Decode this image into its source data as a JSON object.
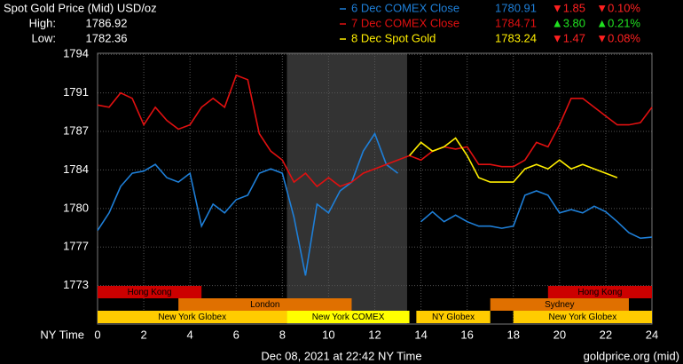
{
  "chart_data": {
    "type": "line",
    "title": "Spot Gold Price (Mid) USD/oz",
    "high_label": "High:",
    "high": 1786.92,
    "low_label": "Low:",
    "low": 1782.36,
    "x_label": "NY Time",
    "footer_left": "Dec 08, 2021 at 22:42 NY Time",
    "footer_right": "goldprice.org (mid)",
    "xlim": [
      0,
      24
    ],
    "xticks": [
      0,
      2,
      4,
      6,
      8,
      10,
      12,
      14,
      16,
      18,
      20,
      22,
      24
    ],
    "ylim": [
      1769.9,
      1794.5
    ],
    "yticks": [
      {
        "value": 1773.4,
        "label": "1773"
      },
      {
        "value": 1776.9,
        "label": "1777"
      },
      {
        "value": 1780.4,
        "label": "1780"
      },
      {
        "value": 1783.9,
        "label": "1784"
      },
      {
        "value": 1787.4,
        "label": "1787"
      },
      {
        "value": 1790.9,
        "label": "1791"
      },
      {
        "value": 1794.4,
        "label": "1794"
      }
    ],
    "grid": true,
    "highlight": [
      8.2,
      13.4
    ],
    "x": [
      0,
      0.5,
      1,
      1.5,
      2,
      2.5,
      3,
      3.5,
      4,
      4.5,
      5,
      5.5,
      6,
      6.5,
      7,
      7.5,
      8,
      8.5,
      9,
      9.5,
      10,
      10.5,
      11,
      11.5,
      12,
      12.5,
      13,
      13.5,
      14,
      14.5,
      15,
      15.5,
      16,
      16.5,
      17,
      17.5,
      18,
      18.5,
      19,
      19.5,
      20,
      20.5,
      21,
      21.5,
      22,
      22.5,
      23,
      23.5,
      24
    ],
    "series": [
      {
        "name": "6 Dec COMEX Close",
        "color": "#1e7fd8",
        "close": 1780.91,
        "change": "▼1.85",
        "change_pct": "▼0.10%",
        "change_color": "#ff2020",
        "values": [
          1778.4,
          1780.0,
          1782.4,
          1783.6,
          1783.8,
          1784.4,
          1783.2,
          1782.8,
          1783.6,
          1778.8,
          1780.8,
          1780.0,
          1781.2,
          1781.6,
          1783.6,
          1784.0,
          1783.6,
          1779.6,
          1774.3,
          1780.8,
          1780.0,
          1782.0,
          1782.8,
          1785.6,
          1787.2,
          1784.4,
          1783.6,
          null,
          1779.2,
          1780.1,
          1779.2,
          1779.8,
          1779.2,
          1778.8,
          1778.8,
          1778.6,
          1778.8,
          1781.6,
          1782.0,
          1781.6,
          1780.0,
          1780.3,
          1780.0,
          1780.6,
          1780.1,
          1779.2,
          1778.2,
          1777.7,
          1777.8
        ]
      },
      {
        "name": "7 Dec COMEX Close",
        "color": "#e01010",
        "close": 1784.71,
        "change": "▲3.80",
        "change_pct": "▲0.21%",
        "change_color": "#20e020",
        "values": [
          1789.8,
          1789.6,
          1790.9,
          1790.4,
          1788.0,
          1789.6,
          1788.4,
          1787.6,
          1788.0,
          1789.6,
          1790.4,
          1789.6,
          1792.5,
          1792.1,
          1787.2,
          1785.6,
          1784.8,
          1782.8,
          1783.6,
          1782.4,
          1783.2,
          1782.4,
          1782.8,
          1783.6,
          1784.0,
          1784.4,
          1784.8,
          1785.2,
          1784.8,
          1785.6,
          1786.0,
          1785.8,
          1786.0,
          1784.4,
          1784.4,
          1784.2,
          1784.2,
          1784.8,
          1786.4,
          1786.0,
          1788.0,
          1790.4,
          1790.4,
          1789.6,
          1788.8,
          1788.0,
          1788.0,
          1788.2,
          1789.6
        ]
      },
      {
        "name": "8 Dec Spot Gold",
        "color": "#ffee00",
        "close": 1783.24,
        "change": "▼1.47",
        "change_pct": "▼0.08%",
        "change_color": "#ff2020",
        "values": [
          null,
          null,
          null,
          null,
          null,
          null,
          null,
          null,
          null,
          null,
          null,
          null,
          null,
          null,
          null,
          null,
          null,
          null,
          null,
          null,
          null,
          null,
          null,
          null,
          null,
          null,
          null,
          1785.2,
          1786.4,
          1785.6,
          1786.0,
          1786.8,
          1785.2,
          1783.2,
          1782.8,
          1782.8,
          1782.8,
          1784.0,
          1784.4,
          1784.0,
          1784.8,
          1784.0,
          1784.4,
          1784.0,
          1783.6,
          1783.2,
          null,
          null,
          null
        ]
      }
    ],
    "session_rows": [
      [
        {
          "label": "Hong Kong",
          "start": 0,
          "end": 4.5,
          "color": "#cc0000"
        },
        {
          "label": "Hong Kong",
          "start": 19.5,
          "end": 24,
          "color": "#cc0000"
        }
      ],
      [
        {
          "label": "London",
          "start": 3.5,
          "end": 11,
          "color": "#e07000"
        },
        {
          "label": "Sydney",
          "start": 17,
          "end": 23,
          "color": "#e07000"
        }
      ],
      [
        {
          "label": "New York Globex",
          "start": 0,
          "end": 8.2,
          "color": "#ffcc00"
        },
        {
          "label": "New York COMEX",
          "start": 8.2,
          "end": 13.5,
          "color": "#ffff00"
        },
        {
          "label": "NY Globex",
          "start": 13.8,
          "end": 17,
          "color": "#ffcc00"
        },
        {
          "label": "New York Globex",
          "start": 18,
          "end": 24,
          "color": "#ffcc00"
        }
      ]
    ]
  }
}
